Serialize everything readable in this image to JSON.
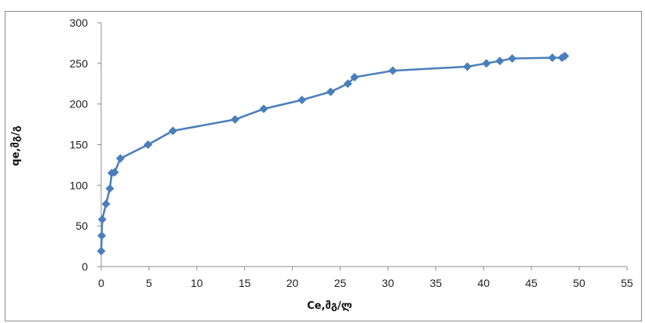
{
  "chart_data": {
    "type": "line",
    "title": "",
    "xlabel": "Ce,მგ/ლ",
    "ylabel": "qe,მგ/გ",
    "xlim": [
      0,
      55
    ],
    "ylim": [
      0,
      300
    ],
    "x_ticks": [
      0,
      5,
      10,
      15,
      20,
      25,
      30,
      35,
      40,
      45,
      50,
      55
    ],
    "y_ticks": [
      0,
      50,
      100,
      150,
      200,
      250,
      300
    ],
    "grid": false,
    "legend": "none",
    "marker": "diamond",
    "series_color": "#4a7ebb",
    "series": [
      {
        "x": [
          0.0,
          0.05,
          0.1,
          0.5,
          0.9,
          1.1,
          1.4,
          2.0,
          4.9,
          7.5,
          14.0,
          17.0,
          21.0,
          24.0,
          25.8,
          26.5,
          30.5,
          38.3,
          40.3,
          41.7,
          43.0,
          47.2,
          48.2,
          48.5
        ],
        "y": [
          19,
          38,
          58,
          77,
          96,
          115,
          116,
          133,
          150,
          167,
          181,
          194,
          205,
          215,
          225,
          233,
          241,
          246,
          250,
          253,
          256,
          257,
          257,
          259
        ]
      }
    ]
  }
}
